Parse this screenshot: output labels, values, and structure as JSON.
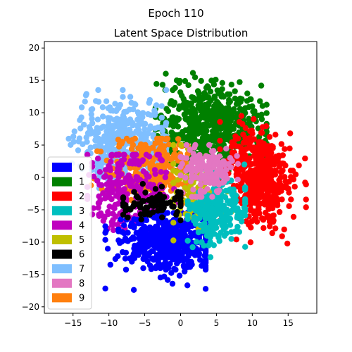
{
  "chart_data": {
    "type": "scatter",
    "suptitle": "Epoch 110",
    "title": "Latent Space Distribution",
    "xlabel": "",
    "ylabel": "",
    "xlim": [
      -19,
      19
    ],
    "ylim": [
      -21,
      21
    ],
    "xticks": [
      -15,
      -10,
      -5,
      0,
      5,
      10,
      15
    ],
    "yticks": [
      -20,
      -15,
      -10,
      -5,
      0,
      5,
      10,
      15,
      20
    ],
    "grid": false,
    "legend": {
      "placement": "lower-left"
    },
    "series": [
      {
        "name": "0",
        "color": "#0000ff",
        "cluster": {
          "center": [
            -2,
            -10
          ],
          "spread": [
            3.5,
            2.5
          ],
          "range": [
            [
              -10.5,
              3.5
            ],
            [
              -19,
              -5.5
            ]
          ],
          "count": 500
        }
      },
      {
        "name": "1",
        "color": "#008000",
        "cluster": {
          "center": [
            4,
            8
          ],
          "spread": [
            3.8,
            3.2
          ],
          "range": [
            [
              -3.5,
              12
            ],
            [
              1,
              18.5
            ]
          ],
          "count": 600
        }
      },
      {
        "name": "2",
        "color": "#ff0000",
        "cluster": {
          "center": [
            11,
            0
          ],
          "spread": [
            2.4,
            3.6
          ],
          "range": [
            [
              5.5,
              17.5
            ],
            [
              -15,
              9.5
            ]
          ],
          "count": 500
        }
      },
      {
        "name": "3",
        "color": "#00bfbf",
        "cluster": {
          "center": [
            5,
            -5
          ],
          "spread": [
            2.0,
            2.6
          ],
          "range": [
            [
              1,
              9
            ],
            [
              -12.5,
              2
            ]
          ],
          "count": 250
        }
      },
      {
        "name": "4",
        "color": "#bf00bf",
        "cluster": {
          "center": [
            -7,
            -2
          ],
          "spread": [
            3.0,
            3.0
          ],
          "range": [
            [
              -13,
              0
            ],
            [
              -8.5,
              3.5
            ]
          ],
          "count": 250
        }
      },
      {
        "name": "5",
        "color": "#bfbf00",
        "cluster": {
          "center": [
            2,
            -2
          ],
          "spread": [
            1.8,
            3.0
          ],
          "range": [
            [
              -1,
              7.5
            ],
            [
              -11.5,
              5
            ]
          ],
          "count": 120
        }
      },
      {
        "name": "6",
        "color": "#000000",
        "cluster": {
          "center": [
            -3.5,
            -4
          ],
          "spread": [
            2.4,
            1.2
          ],
          "range": [
            [
              -8,
              0
            ],
            [
              -7,
              -1
            ]
          ],
          "count": 90
        }
      },
      {
        "name": "7",
        "color": "#7fbfff",
        "cluster": {
          "center": [
            -8,
            5.5
          ],
          "spread": [
            3.0,
            3.0
          ],
          "range": [
            [
              -16,
              -2
            ],
            [
              -2.5,
              13.5
            ]
          ],
          "count": 450
        }
      },
      {
        "name": "8",
        "color": "#e377c2",
        "cluster": {
          "center": [
            4,
            1
          ],
          "spread": [
            2.0,
            2.0
          ],
          "range": [
            [
              0,
              8
            ],
            [
              -3,
              5
            ]
          ],
          "count": 150
        }
      },
      {
        "name": "9",
        "color": "#ff7f0e",
        "cluster": {
          "center": [
            -4,
            1.5
          ],
          "spread": [
            3.0,
            2.5
          ],
          "range": [
            [
              -12.5,
              1
            ],
            [
              -4,
              6
            ]
          ],
          "count": 280
        }
      }
    ],
    "draw_order": [
      "1",
      "7",
      "9",
      "4",
      "0",
      "2",
      "5",
      "3",
      "8",
      "6"
    ]
  }
}
